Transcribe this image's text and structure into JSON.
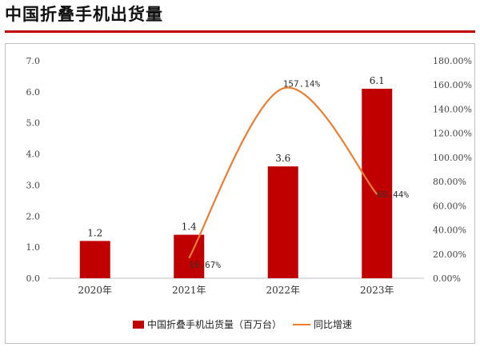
{
  "page": {
    "title": "中国折叠手机出货量"
  },
  "chart_data": {
    "type": "bar",
    "categories": [
      "2020年",
      "2021年",
      "2022年",
      "2023年"
    ],
    "series": [
      {
        "name": "中国折叠手机出货量（百万台）",
        "type": "bar",
        "axis": "left",
        "values": [
          1.2,
          1.4,
          3.6,
          6.1
        ],
        "labels": [
          "1.2",
          "1.4",
          "3.6",
          "6.1"
        ],
        "color": "#c00000"
      },
      {
        "name": "同比增速",
        "type": "line",
        "axis": "right",
        "values": [
          null,
          16.67,
          157.14,
          69.44
        ],
        "labels": [
          null,
          "16.67%",
          "157.14%",
          "69.44%"
        ],
        "color": "#ed7d31"
      }
    ],
    "y_left": {
      "min": 0,
      "max": 7,
      "step": 1,
      "ticks": [
        "0.0",
        "1.0",
        "2.0",
        "3.0",
        "4.0",
        "5.0",
        "6.0",
        "7.0"
      ]
    },
    "y_right": {
      "min": 0,
      "max": 180,
      "step": 20,
      "ticks": [
        "0.00%",
        "20.00%",
        "40.00%",
        "60.00%",
        "80.00%",
        "100.00%",
        "120.00%",
        "140.00%",
        "160.00%",
        "180.00%"
      ]
    },
    "grid": false,
    "legend_position": "bottom"
  }
}
